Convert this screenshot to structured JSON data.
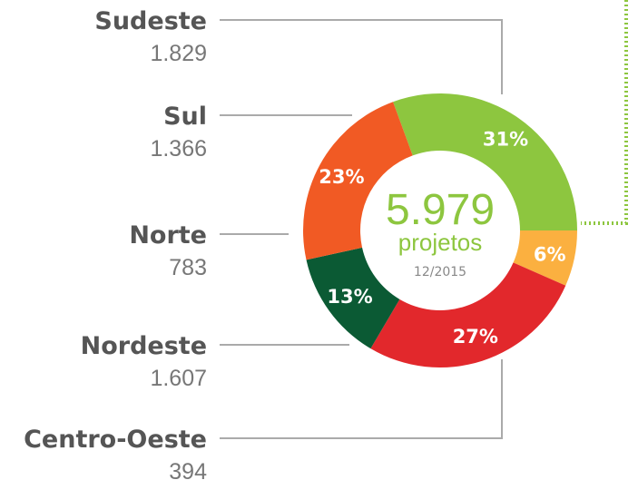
{
  "chart_data": {
    "type": "donut",
    "categories": [
      "Sudeste",
      "Centro-Oeste",
      "Nordeste",
      "Norte",
      "Sul"
    ],
    "values": [
      1829,
      394,
      1607,
      783,
      1366
    ],
    "value_labels": [
      "1.829",
      "394",
      "1.607",
      "783",
      "1.366"
    ],
    "shares": [
      31,
      6,
      27,
      13,
      23
    ],
    "share_labels": [
      "31%",
      "6%",
      "27%",
      "13%",
      "23%"
    ],
    "colors": [
      "#8dc63f",
      "#fbb040",
      "#e2282c",
      "#0b5a34",
      "#f15a24"
    ],
    "total": 5979,
    "total_label": "5.979",
    "total_caption": "projetos",
    "date": "12/2015"
  }
}
